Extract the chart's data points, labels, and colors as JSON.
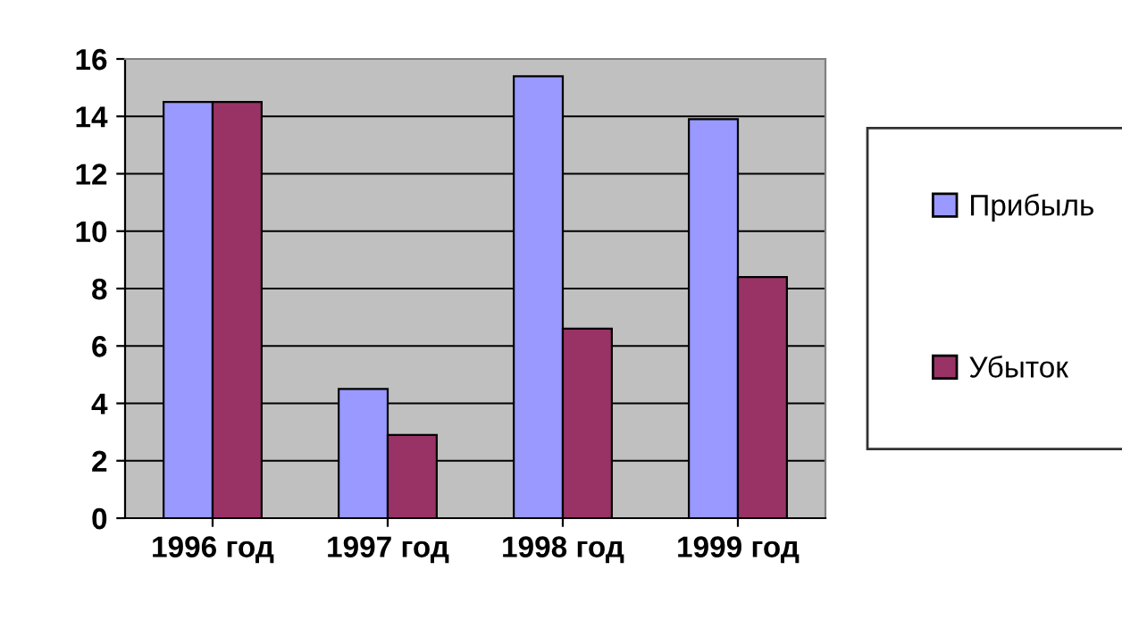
{
  "chart_data": {
    "type": "bar",
    "categories": [
      "1996 год",
      "1997 год",
      "1998 год",
      "1999 год"
    ],
    "series": [
      {
        "name": "Прибыль",
        "color": "#9999ff",
        "values": [
          14.5,
          4.5,
          15.4,
          13.9
        ]
      },
      {
        "name": "Убыток",
        "color": "#993366",
        "values": [
          14.5,
          2.9,
          6.6,
          8.4
        ]
      }
    ],
    "ylim": [
      0,
      16
    ],
    "yticks": [
      0,
      2,
      4,
      6,
      8,
      10,
      12,
      14,
      16
    ],
    "grid": "y",
    "legend": "right"
  }
}
